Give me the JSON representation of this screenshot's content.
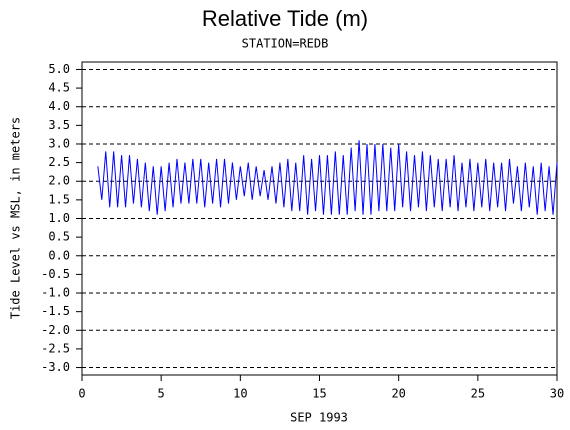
{
  "chart_data": {
    "type": "line",
    "title": "Relative Tide (m)",
    "subtitle": "STATION=REDB",
    "x_label": "SEP 1993",
    "y_label": "Tide Level vs MSL, in meters",
    "color": "#0000ff",
    "grid": true,
    "grid_step": 1,
    "xlim": [
      0,
      30
    ],
    "xticks": [
      0,
      5,
      10,
      15,
      20,
      25,
      30
    ],
    "ylim": [
      -3.2,
      5.2
    ],
    "yticks": [
      {
        "value": -3,
        "label": "-3.0"
      },
      -2.5,
      {
        "value": -2,
        "label": "-2.0"
      },
      -1.5,
      {
        "value": -1,
        "label": "-1.0"
      },
      -0.5,
      {
        "value": 0,
        "label": "0.0"
      },
      0.5,
      {
        "value": 1,
        "label": "1.0"
      },
      1.5,
      {
        "value": 2,
        "label": "2.0"
      },
      2.5,
      {
        "value": 3,
        "label": "3.0"
      },
      3.5,
      {
        "value": 4,
        "label": "4.0"
      },
      4.5,
      {
        "value": 5,
        "label": "5.0"
      }
    ],
    "x": [
      1,
      1.25,
      1.5,
      1.75,
      2,
      2.25,
      2.5,
      2.75,
      3,
      3.25,
      3.5,
      3.75,
      4,
      4.25,
      4.5,
      4.75,
      5,
      5.25,
      5.5,
      5.75,
      6,
      6.25,
      6.5,
      6.75,
      7,
      7.25,
      7.5,
      7.75,
      8,
      8.25,
      8.5,
      8.75,
      9,
      9.25,
      9.5,
      9.75,
      10,
      10.25,
      10.5,
      10.75,
      11,
      11.25,
      11.5,
      11.75,
      12,
      12.25,
      12.5,
      12.75,
      13,
      13.25,
      13.5,
      13.75,
      14,
      14.25,
      14.5,
      14.75,
      15,
      15.25,
      15.5,
      15.75,
      16,
      16.25,
      16.5,
      16.75,
      17,
      17.25,
      17.5,
      17.75,
      18,
      18.25,
      18.5,
      18.75,
      19,
      19.25,
      19.5,
      19.75,
      20,
      20.25,
      20.5,
      20.75,
      21,
      21.25,
      21.5,
      21.75,
      22,
      22.25,
      22.5,
      22.75,
      23,
      23.25,
      23.5,
      23.75,
      24,
      24.25,
      24.5,
      24.75,
      25,
      25.25,
      25.5,
      25.75,
      26,
      26.25,
      26.5,
      26.75,
      27,
      27.25,
      27.5,
      27.75,
      28,
      28.25,
      28.5,
      28.75,
      29,
      29.25,
      29.5,
      29.75,
      30
    ],
    "values": [
      2.4,
      1.5,
      2.8,
      1.3,
      2.8,
      1.3,
      2.7,
      1.3,
      2.7,
      1.4,
      2.6,
      1.3,
      2.5,
      1.2,
      2.4,
      1.1,
      2.4,
      1.2,
      2.5,
      1.3,
      2.6,
      1.4,
      2.5,
      1.4,
      2.6,
      1.4,
      2.6,
      1.3,
      2.5,
      1.4,
      2.6,
      1.3,
      2.6,
      1.4,
      2.5,
      1.5,
      2.4,
      1.6,
      2.5,
      1.5,
      2.4,
      1.6,
      2.3,
      1.5,
      2.4,
      1.4,
      2.5,
      1.3,
      2.6,
      1.2,
      2.5,
      1.2,
      2.7,
      1.1,
      2.6,
      1.2,
      2.7,
      1.1,
      2.7,
      1.1,
      2.8,
      1.1,
      2.7,
      1.1,
      2.9,
      1.2,
      3.1,
      1.1,
      3.0,
      1.1,
      3.0,
      1.2,
      3.0,
      1.2,
      2.9,
      1.2,
      3.0,
      1.3,
      2.8,
      1.2,
      2.7,
      1.3,
      2.8,
      1.2,
      2.7,
      1.3,
      2.6,
      1.2,
      2.6,
      1.3,
      2.7,
      1.2,
      2.5,
      1.3,
      2.6,
      1.2,
      2.5,
      1.3,
      2.6,
      1.2,
      2.5,
      1.3,
      2.5,
      1.2,
      2.6,
      1.4,
      2.4,
      1.2,
      2.5,
      1.3,
      2.4,
      1.1,
      2.5,
      1.2,
      2.4,
      1.1,
      2.5
    ]
  }
}
